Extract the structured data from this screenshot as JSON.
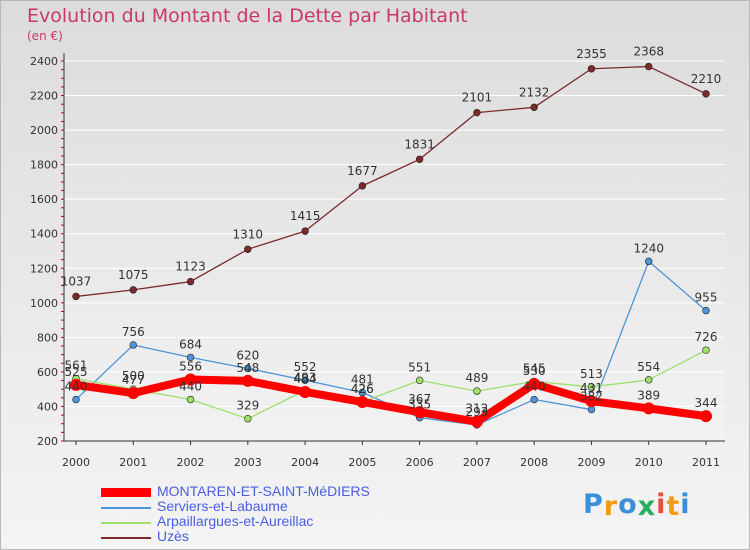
{
  "chart_data": {
    "type": "line",
    "title": "Evolution du Montant de la Dette par Habitant",
    "subtitle": "(en €)",
    "xlabel": "",
    "ylabel": "",
    "ylim": [
      200,
      2400
    ],
    "yticks": [
      200,
      400,
      600,
      800,
      1000,
      1200,
      1400,
      1600,
      1800,
      2000,
      2200,
      2400
    ],
    "x": [
      "2000",
      "2001",
      "2002",
      "2003",
      "2004",
      "2005",
      "2006",
      "2007",
      "2008",
      "2009",
      "2010",
      "2011"
    ],
    "series": [
      {
        "name": "Uzès",
        "color": "#7a2a2a",
        "values": [
          1037,
          1075,
          1123,
          1310,
          1415,
          1677,
          1831,
          2101,
          2132,
          2355,
          2368,
          2210
        ]
      },
      {
        "name": "Serviers-et-Labaume",
        "color": "#4d95d8",
        "values": [
          440,
          756,
          684,
          620,
          552,
          481,
          335,
          293,
          440,
          382,
          1240,
          955
        ]
      },
      {
        "name": "Arpaillargues-et-Aureillac",
        "color": "#9ee06a",
        "values": [
          561,
          500,
          440,
          329,
          493,
          426,
          551,
          489,
          545,
          513,
          554,
          726
        ]
      },
      {
        "name": "MONTAREN-ET-SAINT-MéDIERS",
        "color": "#ff0000",
        "values": [
          525,
          477,
          556,
          548,
          484,
          426,
          367,
          312,
          530,
          431,
          389,
          344
        ]
      }
    ],
    "legend_position": "bottom-left"
  },
  "logo": {
    "letters": [
      "P",
      "r",
      "o",
      "x",
      "i",
      "t",
      "i"
    ],
    "colors": [
      "#3a90d8",
      "#f39c12",
      "#3a90d8",
      "#27ae60",
      "#e74c3c",
      "#f39c12",
      "#3a90d8"
    ]
  },
  "colors": {
    "title": "#c8386a",
    "axis": "#333333",
    "grid": "#ffffff",
    "tick_label": "#333333",
    "data_label": "#333333",
    "legend_text": "#4a5ee0"
  }
}
